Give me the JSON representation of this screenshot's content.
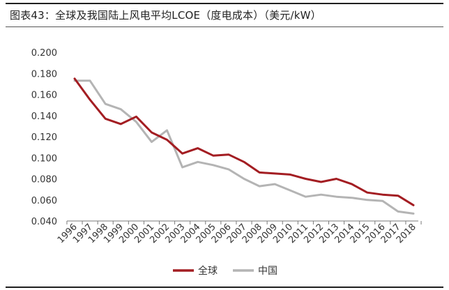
{
  "title": "图表43：全球及我国陆上风电平均LCOE（度电成本）（美元/kW）",
  "chart_data": {
    "type": "line",
    "categories": [
      "1996",
      "1997",
      "1998",
      "1999",
      "2000",
      "2001",
      "2002",
      "2003",
      "2004",
      "2005",
      "2006",
      "2007",
      "2008",
      "2009",
      "2010",
      "2011",
      "2012",
      "2013",
      "2014",
      "2015",
      "2016",
      "2017",
      "2018"
    ],
    "series": [
      {
        "name": "全球",
        "color": "#a31d22",
        "values": [
          0.175,
          0.155,
          0.137,
          0.132,
          0.139,
          0.124,
          0.117,
          0.104,
          0.109,
          0.102,
          0.103,
          0.096,
          0.086,
          0.085,
          0.084,
          0.08,
          0.077,
          0.08,
          0.075,
          0.067,
          0.065,
          0.064,
          0.055
        ]
      },
      {
        "name": "中国",
        "color": "#b4b4b4",
        "values": [
          0.173,
          0.173,
          0.151,
          0.146,
          0.134,
          0.115,
          0.126,
          0.091,
          0.096,
          0.093,
          0.089,
          0.08,
          0.073,
          0.075,
          0.069,
          0.063,
          0.065,
          0.063,
          0.062,
          0.06,
          0.059,
          0.049,
          0.047
        ]
      }
    ],
    "ylim": [
      0.04,
      0.2
    ],
    "yticks": [
      "0.200",
      "0.180",
      "0.160",
      "0.140",
      "0.120",
      "0.100",
      "0.080",
      "0.060",
      "0.040"
    ],
    "grid": false,
    "legend_position": "bottom-center"
  }
}
